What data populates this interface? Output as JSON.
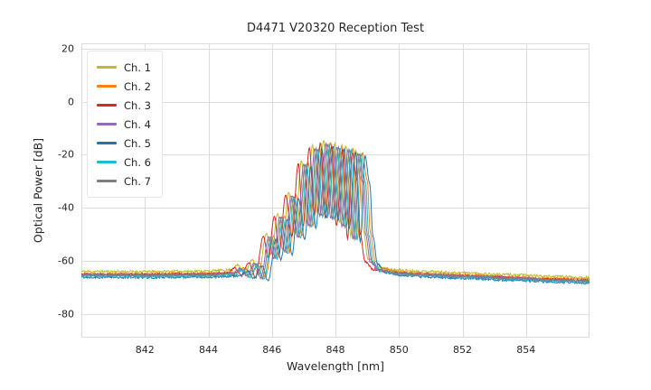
{
  "figure": {
    "background": "#ffffff",
    "text_color": "#262626"
  },
  "chart_data": {
    "type": "line",
    "title": "D4471 V20320 Reception Test",
    "xlabel": "Wavelength [nm]",
    "ylabel": "Optical Power [dB]",
    "xlim": [
      840.0,
      856.0
    ],
    "ylim": [
      -89,
      22
    ],
    "xticks": [
      842,
      844,
      846,
      848,
      850,
      852,
      854
    ],
    "yticks": [
      20,
      0,
      -20,
      -40,
      -60,
      -80
    ],
    "grid": true,
    "grid_color": "#dcdcdc",
    "legend_position": "upper left",
    "sample_step": 0.02,
    "noise_amplitude": 0.45,
    "envelope": [
      [
        840.0,
        -65.3
      ],
      [
        842.0,
        -65.4
      ],
      [
        844.0,
        -65.2
      ],
      [
        844.8,
        -64.8
      ],
      [
        845.05,
        -63.0
      ],
      [
        845.25,
        -65.8
      ],
      [
        845.5,
        -61.0
      ],
      [
        845.7,
        -66.5
      ],
      [
        845.95,
        -51.0
      ],
      [
        846.1,
        -59.0
      ],
      [
        846.3,
        -43.5
      ],
      [
        846.45,
        -57.0
      ],
      [
        846.65,
        -35.5
      ],
      [
        846.85,
        -51.0
      ],
      [
        847.05,
        -23.5
      ],
      [
        847.2,
        -47.0
      ],
      [
        847.4,
        -17.5
      ],
      [
        847.55,
        -43.0
      ],
      [
        847.75,
        -15.8
      ],
      [
        847.9,
        -44.0
      ],
      [
        848.1,
        -17.0
      ],
      [
        848.25,
        -47.0
      ],
      [
        848.45,
        -18.0
      ],
      [
        848.6,
        -52.0
      ],
      [
        848.75,
        -19.5
      ],
      [
        848.9,
        -30.0
      ],
      [
        849.0,
        -50.0
      ],
      [
        849.15,
        -60.5
      ],
      [
        849.4,
        -63.5
      ],
      [
        850.0,
        -64.8
      ],
      [
        851.0,
        -65.3
      ],
      [
        852.0,
        -65.8
      ],
      [
        853.5,
        -66.5
      ],
      [
        855.0,
        -67.2
      ],
      [
        856.0,
        -67.6
      ]
    ],
    "series": [
      {
        "name": "Ch. 1",
        "color": "#bcbd22",
        "shift": -0.12,
        "baseline_offset": 1.3,
        "seed": 11
      },
      {
        "name": "Ch. 2",
        "color": "#ff7f0e",
        "shift": 0.1,
        "baseline_offset": 0.4,
        "seed": 22
      },
      {
        "name": "Ch. 3",
        "color": "#d62728",
        "shift": -0.22,
        "baseline_offset": 0.2,
        "seed": 33
      },
      {
        "name": "Ch. 4",
        "color": "#9467bd",
        "shift": -0.05,
        "baseline_offset": 0.0,
        "seed": 44
      },
      {
        "name": "Ch. 5",
        "color": "#1f77b4",
        "shift": 0.18,
        "baseline_offset": -0.9,
        "seed": 55
      },
      {
        "name": "Ch. 6",
        "color": "#17becf",
        "shift": 0.05,
        "baseline_offset": -0.4,
        "seed": 66
      },
      {
        "name": "Ch. 7",
        "color": "#7f7f7f",
        "shift": 0.0,
        "baseline_offset": -0.1,
        "seed": 77
      }
    ]
  }
}
